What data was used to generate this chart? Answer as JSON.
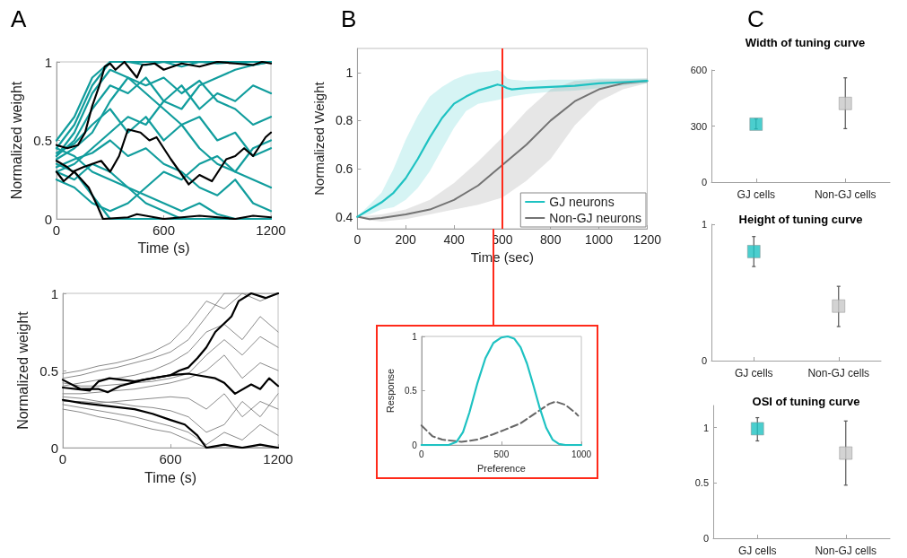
{
  "chart_data": [
    {
      "type": "line",
      "annotations": [
        "A"
      ],
      "xlabel": "Time (s)",
      "ylabel": "Normalized weight",
      "xlim": [
        0,
        1200
      ],
      "xticks": [
        0,
        600,
        1200
      ],
      "ylim": [
        0,
        1
      ],
      "yticks": [
        0,
        0.5,
        1
      ],
      "marker": "none",
      "x": [
        0,
        100,
        200,
        300,
        400,
        500,
        600,
        700,
        800,
        900,
        1000,
        1100,
        1200
      ],
      "series": [
        {
          "color": "#119d9d",
          "values": [
            0.45,
            0.6,
            0.85,
            1,
            1,
            0.98,
            1,
            0.97,
            1,
            0.99,
            1,
            0.98,
            1
          ]
        },
        {
          "color": "#119d9d",
          "values": [
            0.4,
            0.5,
            0.7,
            0.85,
            0.8,
            0.9,
            0.75,
            0.85,
            0.7,
            0.8,
            0.75,
            0.85,
            0.8
          ]
        },
        {
          "color": "#119d9d",
          "values": [
            0.35,
            0.3,
            0.15,
            0,
            0,
            0,
            0,
            0,
            0,
            0,
            0,
            0,
            0
          ]
        },
        {
          "color": "#119d9d",
          "values": [
            0.42,
            0.48,
            0.6,
            0.7,
            0.55,
            0.65,
            0.5,
            0.6,
            0.45,
            0.35,
            0.3,
            0.25,
            0.2
          ]
        },
        {
          "color": "#119d9d",
          "values": [
            0.3,
            0.35,
            0.45,
            0.55,
            0.65,
            0.6,
            0.75,
            0.7,
            0.85,
            0.9,
            0.95,
            0.98,
            1
          ]
        },
        {
          "color": "#119d9d",
          "values": [
            0.45,
            0.4,
            0.3,
            0.25,
            0.2,
            0.15,
            0.1,
            0.05,
            0.1,
            0.03,
            0,
            0,
            0
          ]
        },
        {
          "color": "#119d9d",
          "values": [
            0.38,
            0.45,
            0.55,
            0.75,
            0.9,
            0.85,
            0.9,
            0.8,
            0.88,
            0.75,
            0.7,
            0.6,
            0.65
          ]
        },
        {
          "color": "#119d9d",
          "values": [
            0.33,
            0.38,
            0.42,
            0.5,
            0.4,
            0.45,
            0.35,
            0.3,
            0.2,
            0.15,
            0.25,
            0.1,
            0.05
          ]
        },
        {
          "color": "#119d9d",
          "values": [
            0.5,
            0.65,
            0.9,
            1,
            1,
            1,
            1,
            1,
            1,
            1,
            1,
            1,
            1
          ]
        },
        {
          "color": "#119d9d",
          "values": [
            0.25,
            0.2,
            0.1,
            0.05,
            0.1,
            0.2,
            0.3,
            0.25,
            0.35,
            0.4,
            0.3,
            0.45,
            0.5
          ]
        },
        {
          "color": "#119d9d",
          "values": [
            0.4,
            0.55,
            0.8,
            0.95,
            0.9,
            0.8,
            0.7,
            0.6,
            0.65,
            0.5,
            0.55,
            0.4,
            0.45
          ]
        },
        {
          "color": "#119d9d",
          "values": [
            0.3,
            0.25,
            0.35,
            0.3,
            0.2,
            0.1,
            0.05,
            0,
            0,
            0,
            0,
            0,
            0
          ]
        },
        {
          "color": "#000000",
          "x": [
            0,
            60,
            120,
            160,
            200,
            240,
            270,
            300,
            330,
            380,
            450,
            480,
            550,
            600,
            700,
            800,
            900,
            1000,
            1100,
            1150,
            1200
          ],
          "values": [
            0.47,
            0.45,
            0.47,
            0.55,
            0.72,
            0.85,
            0.97,
            0.99,
            0.95,
            1,
            0.9,
            0.98,
            0.99,
            0.95,
            0.99,
            0.97,
            1,
            0.99,
            0.98,
            1,
            0.99
          ]
        },
        {
          "color": "#000000",
          "x": [
            0,
            60,
            90,
            150,
            250,
            300,
            350,
            400,
            470,
            520,
            560,
            640,
            690,
            740,
            800,
            870,
            950,
            1000,
            1050,
            1100,
            1170,
            1200
          ],
          "values": [
            0.37,
            0.33,
            0.3,
            0.33,
            0.37,
            0.3,
            0.4,
            0.57,
            0.55,
            0.5,
            0.52,
            0.38,
            0.3,
            0.22,
            0.28,
            0.24,
            0.38,
            0.4,
            0.45,
            0.4,
            0.52,
            0.55
          ]
        },
        {
          "color": "#000000",
          "x": [
            0,
            40,
            100,
            180,
            230,
            260,
            400,
            450,
            600,
            800,
            1000,
            1100,
            1200
          ],
          "values": [
            0.3,
            0.24,
            0.3,
            0.2,
            0.08,
            0,
            0.01,
            0.03,
            0,
            0.02,
            0,
            0.02,
            0.01
          ]
        }
      ]
    },
    {
      "type": "line",
      "xlabel": "Time (s)",
      "ylabel": "Normalized weight",
      "xlim": [
        0,
        1200
      ],
      "xticks": [
        0,
        600,
        1200
      ],
      "ylim": [
        0,
        1
      ],
      "yticks": [
        0,
        0.5,
        1
      ],
      "marker": "none",
      "x": [
        0,
        100,
        200,
        300,
        400,
        500,
        600,
        700,
        800,
        900,
        1000,
        1100,
        1200
      ],
      "series": [
        {
          "color": "#8a8a8a",
          "values": [
            0.45,
            0.47,
            0.5,
            0.52,
            0.55,
            0.58,
            0.62,
            0.7,
            0.85,
            1,
            1,
            1,
            1
          ]
        },
        {
          "color": "#8a8a8a",
          "values": [
            0.4,
            0.42,
            0.44,
            0.45,
            0.47,
            0.5,
            0.55,
            0.62,
            0.75,
            0.8,
            0.7,
            0.85,
            0.75
          ]
        },
        {
          "color": "#8a8a8a",
          "values": [
            0.35,
            0.35,
            0.36,
            0.37,
            0.38,
            0.4,
            0.42,
            0.45,
            0.5,
            0.6,
            0.45,
            0.55,
            0.5
          ]
        },
        {
          "color": "#8a8a8a",
          "values": [
            0.3,
            0.3,
            0.29,
            0.3,
            0.31,
            0.32,
            0.33,
            0.32,
            0.25,
            0.35,
            0.2,
            0.3,
            0.25
          ]
        },
        {
          "color": "#8a8a8a",
          "values": [
            0.25,
            0.23,
            0.2,
            0.18,
            0.15,
            0.12,
            0.1,
            0.05,
            0,
            0,
            0,
            0,
            0
          ]
        },
        {
          "color": "#8a8a8a",
          "values": [
            0.28,
            0.26,
            0.24,
            0.22,
            0.2,
            0.17,
            0.14,
            0.1,
            0.02,
            0.1,
            0.05,
            0.15,
            0.08
          ]
        },
        {
          "color": "#8a8a8a",
          "values": [
            0.48,
            0.5,
            0.53,
            0.55,
            0.58,
            0.62,
            0.68,
            0.8,
            0.95,
            0.9,
            1,
            0.95,
            1
          ]
        },
        {
          "color": "#8a8a8a",
          "values": [
            0.42,
            0.4,
            0.4,
            0.41,
            0.42,
            0.43,
            0.45,
            0.48,
            0.6,
            0.7,
            0.6,
            0.72,
            0.65
          ]
        },
        {
          "color": "#8a8a8a",
          "values": [
            0.33,
            0.32,
            0.3,
            0.29,
            0.27,
            0.26,
            0.24,
            0.2,
            0.1,
            0.15,
            0.3,
            0.2,
            0.35
          ]
        },
        {
          "color": "#000000",
          "x": [
            0,
            150,
            200,
            260,
            400,
            500,
            600,
            650,
            700,
            750,
            800,
            850,
            940,
            980,
            1050,
            1130,
            1200
          ],
          "values": [
            0.39,
            0.37,
            0.43,
            0.45,
            0.43,
            0.45,
            0.47,
            0.5,
            0.52,
            0.58,
            0.65,
            0.75,
            0.85,
            0.95,
            1,
            0.97,
            1
          ]
        },
        {
          "color": "#000000",
          "x": [
            0,
            100,
            200,
            250,
            320,
            450,
            600,
            700,
            750,
            850,
            900,
            960,
            1050,
            1100,
            1150,
            1200
          ],
          "values": [
            0.44,
            0.38,
            0.38,
            0.36,
            0.4,
            0.44,
            0.47,
            0.48,
            0.47,
            0.45,
            0.42,
            0.35,
            0.41,
            0.38,
            0.45,
            0.4
          ]
        },
        {
          "color": "#000000",
          "x": [
            0,
            100,
            250,
            400,
            500,
            600,
            680,
            750,
            800,
            900,
            1000,
            1100,
            1200
          ],
          "values": [
            0.31,
            0.29,
            0.27,
            0.25,
            0.22,
            0.18,
            0.15,
            0.08,
            0,
            0.02,
            0,
            0.02,
            0
          ]
        }
      ]
    },
    {
      "type": "line",
      "annotations": [
        "B"
      ],
      "xlabel": "Time (sec)",
      "ylabel": "Normalized Weight",
      "xlim": [
        0,
        1200
      ],
      "xticks": [
        0,
        200,
        400,
        600,
        800,
        1000,
        1200
      ],
      "ylim": [
        0.35,
        1.1
      ],
      "yticks": [
        0.4,
        0.6,
        0.8,
        1
      ],
      "marker": "none",
      "legend": "bottom right",
      "ref_lines": [
        {
          "axis": "x",
          "value": 600,
          "color": "#ff2a1a"
        }
      ],
      "series": [
        {
          "name": "GJ neurons",
          "color": "#1ec2c2",
          "x": [
            0,
            50,
            100,
            150,
            200,
            250,
            300,
            350,
            400,
            450,
            500,
            550,
            580,
            600,
            620,
            640,
            700,
            800,
            900,
            1000,
            1100,
            1200
          ],
          "values": [
            0.4,
            0.43,
            0.46,
            0.5,
            0.56,
            0.64,
            0.73,
            0.81,
            0.87,
            0.9,
            0.925,
            0.94,
            0.95,
            0.945,
            0.935,
            0.93,
            0.935,
            0.94,
            0.945,
            0.955,
            0.96,
            0.965
          ],
          "upper": [
            0.4,
            0.45,
            0.5,
            0.6,
            0.72,
            0.82,
            0.9,
            0.94,
            0.97,
            0.99,
            1.0,
            1.005,
            1.01,
            1.0,
            0.975,
            0.97,
            0.965,
            0.97,
            0.97,
            0.975,
            0.975,
            0.975
          ],
          "lower": [
            0.4,
            0.41,
            0.43,
            0.44,
            0.47,
            0.52,
            0.59,
            0.68,
            0.77,
            0.84,
            0.87,
            0.88,
            0.885,
            0.89,
            0.895,
            0.9,
            0.91,
            0.92,
            0.925,
            0.935,
            0.945,
            0.955
          ]
        },
        {
          "name": "Non-GJ neurons",
          "color": "#737373",
          "x": [
            0,
            50,
            100,
            200,
            300,
            400,
            500,
            600,
            700,
            800,
            900,
            1000,
            1100,
            1200
          ],
          "values": [
            0.4,
            0.39,
            0.395,
            0.41,
            0.43,
            0.47,
            0.53,
            0.615,
            0.7,
            0.8,
            0.88,
            0.93,
            0.955,
            0.965
          ],
          "upper": [
            0.4,
            0.405,
            0.41,
            0.43,
            0.47,
            0.54,
            0.63,
            0.73,
            0.84,
            0.93,
            0.965,
            0.97,
            0.972,
            0.975
          ],
          "lower": [
            0.4,
            0.385,
            0.38,
            0.39,
            0.41,
            0.43,
            0.45,
            0.48,
            0.55,
            0.64,
            0.78,
            0.88,
            0.93,
            0.955
          ]
        }
      ]
    },
    {
      "type": "line",
      "xlabel": "Preference",
      "ylabel": "Response",
      "xlim": [
        0,
        1000
      ],
      "xticks": [
        0,
        500,
        1000
      ],
      "ylim": [
        0,
        1
      ],
      "yticks": [
        0,
        0.5,
        1
      ],
      "marker": "none",
      "series": [
        {
          "color": "#1ec2c2",
          "line_style": "solid",
          "x": [
            0,
            170,
            220,
            260,
            300,
            350,
            400,
            450,
            500,
            540,
            580,
            620,
            660,
            700,
            740,
            780,
            820,
            860,
            900,
            1000
          ],
          "values": [
            0,
            0,
            0.03,
            0.12,
            0.3,
            0.57,
            0.8,
            0.94,
            0.99,
            1,
            0.98,
            0.9,
            0.75,
            0.55,
            0.34,
            0.16,
            0.05,
            0.01,
            0,
            0
          ]
        },
        {
          "color": "#666666",
          "line_style": "dashed",
          "x": [
            0,
            70,
            130,
            250,
            350,
            450,
            520,
            620,
            720,
            800,
            840,
            900,
            960,
            980
          ],
          "values": [
            0.18,
            0.08,
            0.05,
            0.03,
            0.05,
            0.1,
            0.14,
            0.2,
            0.3,
            0.38,
            0.4,
            0.37,
            0.3,
            0.27
          ]
        }
      ]
    },
    {
      "type": "scatter",
      "annotations": [
        "C"
      ],
      "title": "Width of tuning curve",
      "categories": [
        "GJ cells",
        "Non-GJ cells"
      ],
      "values": [
        310,
        421
      ],
      "colors": [
        "#1ec2c2",
        "#c8c8c8"
      ],
      "errors": [
        [
          285,
          338
        ],
        [
          286,
          558
        ]
      ],
      "ylim": [
        0,
        600
      ],
      "yticks": [
        0,
        300,
        600
      ],
      "marker": "square"
    },
    {
      "type": "scatter",
      "title": "Height of tuning curve",
      "categories": [
        "GJ cells",
        "Non-GJ cells"
      ],
      "values": [
        0.8,
        0.4
      ],
      "colors": [
        "#1ec2c2",
        "#c8c8c8"
      ],
      "errors": [
        [
          0.69,
          0.91
        ],
        [
          0.25,
          0.545
        ]
      ],
      "ylim": [
        0,
        1
      ],
      "yticks": [
        0,
        1
      ],
      "marker": "square"
    },
    {
      "type": "scatter",
      "title": "OSI of tuning curve",
      "categories": [
        "GJ cells",
        "Non-GJ cells"
      ],
      "values": [
        0.99,
        0.77
      ],
      "colors": [
        "#1ec2c2",
        "#c8c8c8"
      ],
      "errors": [
        [
          0.88,
          1.09
        ],
        [
          0.48,
          1.06
        ]
      ],
      "ylim": [
        0,
        1.2
      ],
      "yticks": [
        0,
        0.5,
        1
      ],
      "marker": "square"
    }
  ]
}
